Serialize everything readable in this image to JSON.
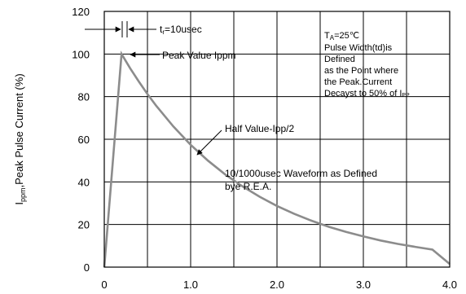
{
  "chart_data": {
    "type": "line",
    "title": "",
    "xlabel": "",
    "ylabel_main": "I",
    "ylabel_sub": "ppm",
    "ylabel_rest": ",Peak Pulse Current (%)",
    "xlim": [
      0,
      4.0
    ],
    "ylim": [
      0,
      120
    ],
    "x_ticks": [
      {
        "value": 0,
        "label": "0"
      },
      {
        "value": 1.0,
        "label": "1.0"
      },
      {
        "value": 2.0,
        "label": "2.0"
      },
      {
        "value": 3.0,
        "label": "3.0"
      },
      {
        "value": 4.0,
        "label": "4.0"
      }
    ],
    "y_ticks": [
      {
        "value": 0,
        "label": "0"
      },
      {
        "value": 20,
        "label": "20"
      },
      {
        "value": 40,
        "label": "40"
      },
      {
        "value": 60,
        "label": "60"
      },
      {
        "value": 80,
        "label": "80"
      },
      {
        "value": 100,
        "label": "100"
      },
      {
        "value": 120,
        "label": "120"
      }
    ],
    "grid": true,
    "x_grid_step": 0.5,
    "y_grid_step": 20,
    "series": [
      {
        "color": "#8c8c8c",
        "x": [
          0,
          0.2,
          0.3,
          0.4,
          0.5,
          0.6,
          0.8,
          1.0,
          1.2,
          1.4,
          1.6,
          1.8,
          2.0,
          2.2,
          2.4,
          2.6,
          2.8,
          3.0,
          3.2,
          3.4,
          3.6,
          3.8,
          4.0
        ],
        "y": [
          0,
          100,
          93.3,
          87.1,
          81.2,
          75.8,
          66.0,
          57.4,
          50.0,
          43.5,
          37.9,
          33.0,
          28.7,
          25.0,
          21.8,
          18.9,
          16.5,
          14.4,
          12.5,
          10.9,
          9.5,
          8.2,
          1.5
        ]
      }
    ],
    "annotations": {
      "tr_label": "t",
      "tr_sub": "r",
      "tr_rest": "=10usec",
      "peak_label": "Peak Value   Ippm",
      "half_label": "Half  Value-Ipp/2",
      "waveform_line1": "10/1000usec  Waveform as Defined",
      "waveform_line2": "bye R.E.A.",
      "ta_main": "T",
      "ta_sub": "A",
      "ta_rest": "=25℃",
      "note_line1": "Pulse Width(td)is",
      "note_line2": "Defined",
      "note_line3": "as the Point where",
      "note_line4": "the Peak.Current",
      "note_line5_main": "Decayst to 50% of I",
      "note_line5_sub": "PP"
    }
  }
}
